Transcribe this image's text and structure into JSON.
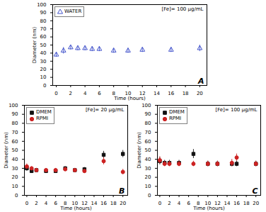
{
  "chart_data": [
    {
      "type": "scatter",
      "xlabel": "Time (hours)",
      "ylabel": "Diameter (nm)",
      "xlim": [
        -0.5,
        21
      ],
      "ylim": [
        0,
        100
      ],
      "xticks": [
        0,
        2,
        4,
        6,
        8,
        10,
        12,
        14,
        16,
        18,
        20
      ],
      "yticks": [
        0,
        10,
        20,
        30,
        40,
        50,
        60,
        70,
        80,
        90,
        100
      ],
      "grid": false,
      "legend": "upper left",
      "annotations": [
        "[Fe]= 100 μg/mL",
        "A"
      ],
      "series": [
        {
          "name": "WATER",
          "color": "#4455cc",
          "marker": "open-triangle",
          "x": [
            0,
            1,
            2,
            3,
            4,
            5,
            6,
            8,
            10,
            12,
            16,
            20
          ],
          "values": [
            38,
            43,
            47,
            46,
            46,
            45,
            45,
            43,
            43,
            44,
            44,
            46
          ],
          "yerr": [
            3,
            4,
            3,
            3,
            3,
            3,
            3,
            3,
            3,
            3,
            3,
            4
          ]
        }
      ]
    },
    {
      "type": "scatter",
      "xlabel": "Time (hours)",
      "ylabel": "Diameter (nm)",
      "xlim": [
        -0.5,
        21
      ],
      "ylim": [
        0,
        100
      ],
      "xticks": [
        0,
        2,
        4,
        6,
        8,
        10,
        12,
        14,
        16,
        18,
        20
      ],
      "yticks": [
        0,
        10,
        20,
        30,
        40,
        50,
        60,
        70,
        80,
        90,
        100
      ],
      "grid": false,
      "legend": "upper left",
      "annotations": [
        "[Fe]= 20 μg/mL",
        "B"
      ],
      "series": [
        {
          "name": "DMEM",
          "color": "#111111",
          "marker": "square",
          "x": [
            0,
            1,
            2,
            4,
            6,
            8,
            10,
            12,
            16,
            20
          ],
          "values": [
            30,
            27,
            28,
            27,
            27,
            30,
            28,
            29,
            45,
            46
          ],
          "yerr": [
            3,
            2,
            2,
            2,
            2,
            2,
            2,
            2,
            4,
            4
          ]
        },
        {
          "name": "RPMI",
          "color": "#cc2222",
          "marker": "circle",
          "x": [
            0,
            1,
            2,
            4,
            6,
            8,
            10,
            12,
            16,
            20
          ],
          "values": [
            32,
            30,
            28,
            28,
            28,
            29,
            28,
            27,
            38,
            26
          ],
          "yerr": [
            3,
            2,
            2,
            2,
            2,
            2,
            2,
            2,
            4,
            3
          ]
        }
      ]
    },
    {
      "type": "scatter",
      "xlabel": "Time (hours)",
      "ylabel": "Diameter (nm)",
      "xlim": [
        -0.5,
        21
      ],
      "ylim": [
        0,
        100
      ],
      "xticks": [
        0,
        2,
        4,
        6,
        8,
        10,
        12,
        14,
        16,
        18,
        20
      ],
      "yticks": [
        0,
        10,
        20,
        30,
        40,
        50,
        60,
        70,
        80,
        90,
        100
      ],
      "grid": false,
      "legend": "upper left",
      "annotations": [
        "[Fe]= 100 μg/mL",
        "C"
      ],
      "series": [
        {
          "name": "DMEM",
          "color": "#111111",
          "marker": "square",
          "x": [
            0,
            1,
            2,
            4,
            7,
            10,
            12,
            15,
            16,
            20
          ],
          "values": [
            38,
            36,
            36,
            36,
            46,
            35,
            35,
            35,
            35,
            35
          ],
          "yerr": [
            4,
            3,
            3,
            3,
            5,
            3,
            3,
            3,
            3,
            3
          ]
        },
        {
          "name": "RPMI",
          "color": "#cc2222",
          "marker": "circle",
          "x": [
            0,
            1,
            2,
            4,
            7,
            10,
            12,
            15,
            16,
            20
          ],
          "values": [
            39,
            35,
            35,
            35,
            35,
            35,
            35,
            36,
            42,
            35
          ],
          "yerr": [
            4,
            3,
            3,
            3,
            3,
            3,
            3,
            4,
            4,
            3
          ]
        }
      ]
    }
  ]
}
